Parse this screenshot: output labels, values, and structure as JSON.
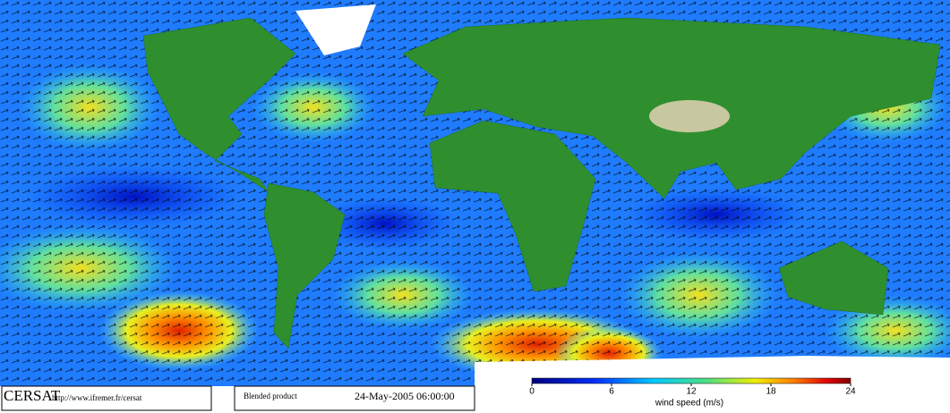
{
  "footer": {
    "logo": "CERSAT",
    "url": "http://www.ifremer.fr/cersat",
    "product": "Blended product",
    "date": "24-May-2005 06:00:00"
  },
  "colorbar": {
    "label": "wind speed (m/s)",
    "range": [
      0,
      24
    ],
    "ticks": [
      0,
      6,
      12,
      18,
      24
    ]
  }
}
